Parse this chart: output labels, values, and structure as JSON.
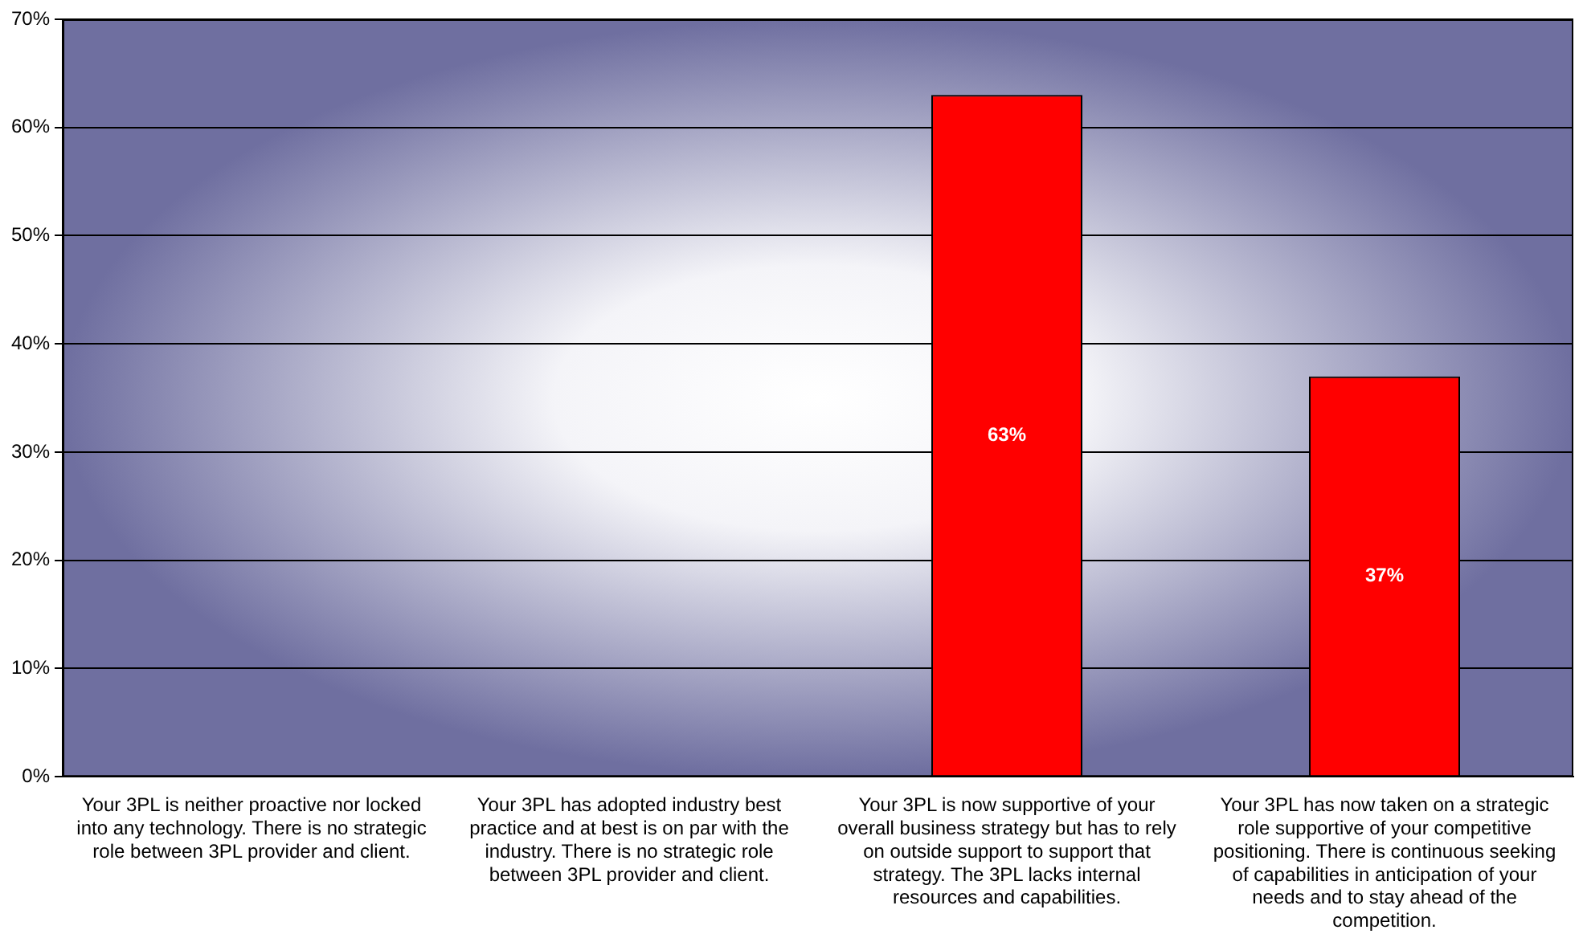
{
  "chart_data": {
    "type": "bar",
    "categories": [
      "Your 3PL is neither proactive nor locked into any technology. There is no strategic role between 3PL provider and client.",
      "Your 3PL has adopted industry best practice and at best is on par with the industry. There is no strategic role between 3PL provider and client.",
      "Your 3PL is now supportive of your overall business strategy but has to rely on outside support to support that strategy. The 3PL lacks internal resources and capabilities.",
      "Your 3PL has now taken on a strategic role supportive of your competitive positioning. There is continuous seeking of capabilities in anticipation of your needs and to stay ahead of the competition."
    ],
    "values": [
      0,
      0,
      63,
      37
    ],
    "value_labels": [
      null,
      null,
      "63%",
      "37%"
    ],
    "color": "#ff0000",
    "ylim": [
      0,
      70
    ],
    "yticks": [
      {
        "value": 0,
        "label": "0%"
      },
      {
        "value": 10,
        "label": "10%"
      },
      {
        "value": 20,
        "label": "20%"
      },
      {
        "value": 30,
        "label": "30%"
      },
      {
        "value": 40,
        "label": "40%"
      },
      {
        "value": 50,
        "label": "50%"
      },
      {
        "value": 60,
        "label": "60%"
      },
      {
        "value": 70,
        "label": "70%"
      }
    ],
    "grid": "y",
    "legend": false
  }
}
